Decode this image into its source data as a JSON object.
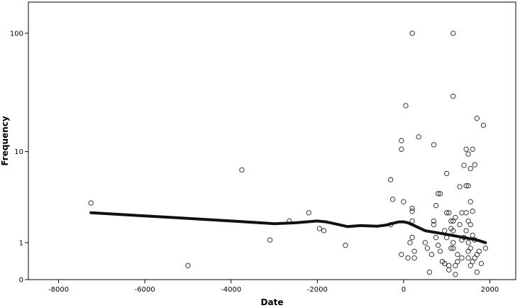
{
  "chart_data": {
    "type": "scatter",
    "xlabel": "Date",
    "ylabel": "Frequency",
    "xlim": [
      -8700,
      2600
    ],
    "y_scale": "log(1+y)",
    "ylim": [
      0,
      180
    ],
    "x_ticks": [
      -8000,
      -6000,
      -4000,
      -2000,
      0,
      2000
    ],
    "x_tick_labels": [
      "-8000",
      "-6000",
      "-4000",
      "-2000",
      "0",
      "2000"
    ],
    "y_ticks": [
      0,
      1,
      10,
      100
    ],
    "y_tick_labels": [
      "0",
      "1",
      "10",
      "100"
    ],
    "grid": false,
    "legend": "none",
    "series": [
      {
        "marker": "open-circle",
        "color": "#222222",
        "points": [
          [
            -7250,
            3.2
          ],
          [
            -5000,
            0.3
          ],
          [
            -3750,
            6.8
          ],
          [
            -3100,
            1.1
          ],
          [
            -2650,
            2.0
          ],
          [
            -2200,
            2.5
          ],
          [
            -1950,
            1.6
          ],
          [
            -1850,
            1.5
          ],
          [
            -1350,
            0.9
          ],
          [
            -300,
            5.5
          ],
          [
            -250,
            3.5
          ],
          [
            -300,
            1.8
          ],
          [
            -50,
            12.5
          ],
          [
            -50,
            10.5
          ],
          [
            -50,
            0.6
          ],
          [
            0,
            3.3
          ],
          [
            50,
            25
          ],
          [
            100,
            0.5
          ],
          [
            150,
            1.0
          ],
          [
            200,
            100
          ],
          [
            200,
            1.2
          ],
          [
            200,
            2.8
          ],
          [
            200,
            2.6
          ],
          [
            200,
            2.0
          ],
          [
            250,
            0.7
          ],
          [
            250,
            0.5
          ],
          [
            350,
            13.5
          ],
          [
            500,
            1.0
          ],
          [
            550,
            0.8
          ],
          [
            600,
            0.15
          ],
          [
            650,
            0.6
          ],
          [
            700,
            11.5
          ],
          [
            700,
            2.0
          ],
          [
            700,
            1.8
          ],
          [
            750,
            3.0
          ],
          [
            750,
            1.2
          ],
          [
            800,
            0.9
          ],
          [
            800,
            4.0
          ],
          [
            850,
            0.7
          ],
          [
            850,
            4.0
          ],
          [
            900,
            0.4
          ],
          [
            950,
            1.5
          ],
          [
            950,
            0.35
          ],
          [
            1000,
            6.3
          ],
          [
            1000,
            2.5
          ],
          [
            1000,
            1.2
          ],
          [
            1050,
            0.3
          ],
          [
            1050,
            0.2
          ],
          [
            1050,
            2.5
          ],
          [
            1100,
            0.8
          ],
          [
            1100,
            1.6
          ],
          [
            1100,
            2.0
          ],
          [
            1150,
            100
          ],
          [
            1150,
            30
          ],
          [
            1150,
            2.0
          ],
          [
            1150,
            1.5
          ],
          [
            1150,
            1.0
          ],
          [
            1150,
            0.8
          ],
          [
            1200,
            0.1
          ],
          [
            1200,
            0.3
          ],
          [
            1200,
            2.2
          ],
          [
            1250,
            0.4
          ],
          [
            1250,
            0.6
          ],
          [
            1300,
            4.7
          ],
          [
            1300,
            1.8
          ],
          [
            1350,
            2.5
          ],
          [
            1350,
            1.1
          ],
          [
            1350,
            0.5
          ],
          [
            1400,
            7.5
          ],
          [
            1400,
            1.2
          ],
          [
            1450,
            10.5
          ],
          [
            1450,
            4.8
          ],
          [
            1450,
            2.5
          ],
          [
            1450,
            1.5
          ],
          [
            1500,
            9.5
          ],
          [
            1500,
            4.8
          ],
          [
            1500,
            2.0
          ],
          [
            1500,
            1.0
          ],
          [
            1500,
            0.7
          ],
          [
            1500,
            0.5
          ],
          [
            1550,
            7.0
          ],
          [
            1550,
            3.3
          ],
          [
            1550,
            1.8
          ],
          [
            1550,
            0.8
          ],
          [
            1550,
            0.3
          ],
          [
            1600,
            10.5
          ],
          [
            1600,
            2.6
          ],
          [
            1600,
            1.3
          ],
          [
            1600,
            0.4
          ],
          [
            1650,
            7.6
          ],
          [
            1650,
            1.1
          ],
          [
            1650,
            0.5
          ],
          [
            1700,
            19.5
          ],
          [
            1700,
            0.6
          ],
          [
            1700,
            0.15
          ],
          [
            1750,
            0.7
          ],
          [
            1800,
            0.35
          ],
          [
            1850,
            17
          ],
          [
            1900,
            0.8
          ]
        ]
      }
    ],
    "trend_line": {
      "style": "thick-black-smooth",
      "points": [
        [
          -7250,
          2.5
        ],
        [
          -6000,
          2.3
        ],
        [
          -5000,
          2.15
        ],
        [
          -4000,
          2.0
        ],
        [
          -3000,
          1.85
        ],
        [
          -2500,
          1.9
        ],
        [
          -2000,
          2.0
        ],
        [
          -1800,
          1.95
        ],
        [
          -1500,
          1.8
        ],
        [
          -1300,
          1.7
        ],
        [
          -1000,
          1.75
        ],
        [
          -600,
          1.72
        ],
        [
          -400,
          1.78
        ],
        [
          -200,
          1.9
        ],
        [
          -100,
          1.95
        ],
        [
          0,
          1.95
        ],
        [
          100,
          1.9
        ],
        [
          250,
          1.75
        ],
        [
          500,
          1.5
        ],
        [
          800,
          1.4
        ],
        [
          1100,
          1.3
        ],
        [
          1400,
          1.2
        ],
        [
          1700,
          1.1
        ],
        [
          1900,
          1.0
        ]
      ]
    }
  }
}
